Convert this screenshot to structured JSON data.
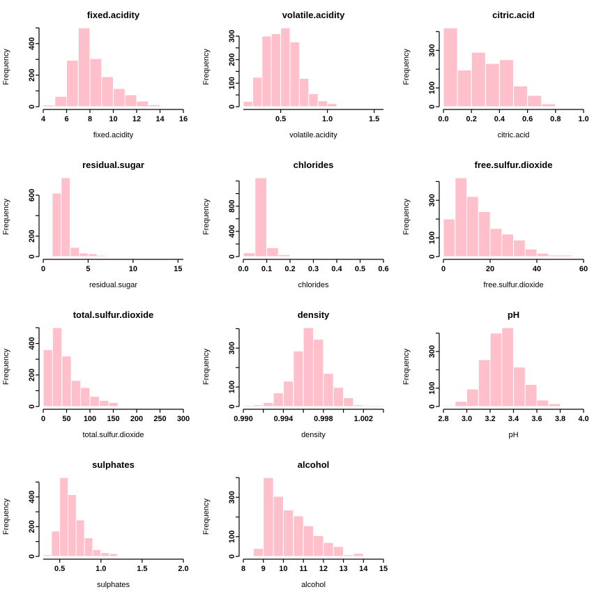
{
  "style": {
    "bar_fill": "#FFC0CB",
    "bar_border": "#FFFFFF",
    "axis_color": "#000000",
    "text_color": "#000000",
    "background": "#FFFFFF"
  },
  "chart_data": [
    {
      "type": "bar",
      "subtype": "histogram",
      "title": "fixed.acidity",
      "xlabel": "fixed.acidity",
      "ylabel": "Frequency",
      "xlim": [
        4,
        16
      ],
      "bin_start": 4,
      "bin_width": 1,
      "counts": [
        10,
        65,
        295,
        500,
        305,
        190,
        115,
        75,
        35,
        12,
        0,
        0
      ],
      "xticks": [
        4,
        6,
        8,
        10,
        12,
        14,
        16
      ],
      "xtick_labels": [
        "4",
        "6",
        "8",
        "10",
        "12",
        "14",
        "16"
      ],
      "yticks": [
        0,
        100,
        200,
        300,
        400,
        500
      ],
      "ytick_labels": [
        "0",
        "",
        "200",
        "",
        "400",
        ""
      ]
    },
    {
      "type": "bar",
      "subtype": "histogram",
      "title": "volatile.acidity",
      "xlabel": "volatile.acidity",
      "ylabel": "Frequency",
      "xlim": [
        0.1,
        1.6
      ],
      "bin_start": 0.1,
      "bin_width": 0.1,
      "counts": [
        22,
        125,
        300,
        310,
        335,
        275,
        120,
        55,
        25,
        13,
        0,
        0,
        0,
        0,
        0
      ],
      "xticks": [
        0.5,
        1.0,
        1.5
      ],
      "xtick_labels": [
        "0.5",
        "1.0",
        "1.5"
      ],
      "yticks": [
        0,
        50,
        100,
        150,
        200,
        250,
        300
      ],
      "ytick_labels": [
        "0",
        "",
        "100",
        "",
        "200",
        "",
        "300"
      ]
    },
    {
      "type": "bar",
      "subtype": "histogram",
      "title": "citric.acid",
      "xlabel": "citric.acid",
      "ylabel": "Frequency",
      "xlim": [
        0,
        1
      ],
      "bin_start": 0,
      "bin_width": 0.1,
      "counts": [
        420,
        195,
        290,
        230,
        250,
        110,
        60,
        15,
        0,
        2
      ],
      "xticks": [
        0,
        0.2,
        0.4,
        0.6,
        0.8,
        1.0
      ],
      "xtick_labels": [
        "0.0",
        "0.2",
        "0.4",
        "0.6",
        "0.8",
        "1.0"
      ],
      "yticks": [
        0,
        100,
        200,
        300,
        400
      ],
      "ytick_labels": [
        "0",
        "100",
        "",
        "300",
        ""
      ]
    },
    {
      "type": "bar",
      "subtype": "histogram",
      "title": "residual.sugar",
      "xlabel": "residual.sugar",
      "ylabel": "Frequency",
      "xlim": [
        0,
        15.6
      ],
      "bin_start": 1,
      "bin_width": 1,
      "counts": [
        620,
        770,
        90,
        35,
        28,
        12,
        5,
        2,
        1,
        1,
        1,
        0,
        0,
        0,
        1
      ],
      "xticks": [
        0,
        5,
        10,
        15
      ],
      "xtick_labels": [
        "0",
        "5",
        "10",
        "15"
      ],
      "yticks": [
        0,
        200,
        400,
        600
      ],
      "ytick_labels": [
        "0",
        "200",
        "",
        "600"
      ]
    },
    {
      "type": "bar",
      "subtype": "histogram",
      "title": "chlorides",
      "xlabel": "chlorides",
      "ylabel": "Frequency",
      "xlim": [
        0,
        0.6
      ],
      "bin_start": 0,
      "bin_width": 0.05,
      "counts": [
        60,
        1250,
        140,
        30,
        5,
        3,
        2,
        1,
        0,
        1,
        0,
        1
      ],
      "xticks": [
        0,
        0.1,
        0.2,
        0.3,
        0.4,
        0.5,
        0.6
      ],
      "xtick_labels": [
        "0.0",
        "0.1",
        "0.2",
        "0.3",
        "0.4",
        "0.5",
        "0.6"
      ],
      "yticks": [
        0,
        200,
        400,
        600,
        800,
        1000,
        1200
      ],
      "ytick_labels": [
        "0",
        "",
        "400",
        "",
        "800",
        "",
        ""
      ]
    },
    {
      "type": "bar",
      "subtype": "histogram",
      "title": "free.sulfur.dioxide",
      "xlabel": "free.sulfur.dioxide",
      "ylabel": "Frequency",
      "xlim": [
        0,
        60
      ],
      "bin_start": 0,
      "bin_width": 5,
      "counts": [
        200,
        420,
        320,
        240,
        150,
        120,
        88,
        40,
        18,
        8,
        8,
        2
      ],
      "xticks": [
        0,
        20,
        40,
        60
      ],
      "xtick_labels": [
        "0",
        "20",
        "40",
        "60"
      ],
      "yticks": [
        0,
        100,
        200,
        300,
        400
      ],
      "ytick_labels": [
        "0",
        "100",
        "",
        "300",
        ""
      ]
    },
    {
      "type": "bar",
      "subtype": "histogram",
      "title": "total.sulfur.dioxide",
      "xlabel": "total.sulfur.dioxide",
      "ylabel": "Frequency",
      "xlim": [
        0,
        300
      ],
      "bin_start": 0,
      "bin_width": 20,
      "counts": [
        360,
        500,
        320,
        165,
        120,
        65,
        38,
        25,
        2,
        0,
        0,
        0,
        0,
        0,
        1
      ],
      "xticks": [
        0,
        50,
        100,
        150,
        200,
        250,
        300
      ],
      "xtick_labels": [
        "0",
        "50",
        "100",
        "150",
        "200",
        "250",
        "300"
      ],
      "yticks": [
        0,
        100,
        200,
        300,
        400,
        500
      ],
      "ytick_labels": [
        "0",
        "",
        "200",
        "",
        "400",
        ""
      ]
    },
    {
      "type": "bar",
      "subtype": "histogram",
      "title": "density",
      "xlabel": "density",
      "ylabel": "Frequency",
      "xlim": [
        0.99,
        1.004
      ],
      "bin_start": 0.99,
      "bin_width": 0.001,
      "counts": [
        5,
        8,
        20,
        70,
        130,
        285,
        405,
        345,
        170,
        98,
        45,
        8,
        5,
        5
      ],
      "xticks": [
        0.99,
        0.992,
        0.994,
        0.996,
        0.998,
        1.0,
        1.002,
        1.004
      ],
      "xtick_labels": [
        "0.990",
        "",
        "0.994",
        "",
        "0.998",
        "",
        "1.002",
        ""
      ],
      "yticks": [
        0,
        100,
        200,
        300,
        400
      ],
      "ytick_labels": [
        "0",
        "100",
        "",
        "300",
        ""
      ]
    },
    {
      "type": "bar",
      "subtype": "histogram",
      "title": "pH",
      "xlabel": "pH",
      "ylabel": "Frequency",
      "xlim": [
        2.8,
        4.0
      ],
      "bin_start": 2.8,
      "bin_width": 0.1,
      "counts": [
        5,
        28,
        95,
        255,
        400,
        430,
        215,
        120,
        35,
        15,
        2,
        1
      ],
      "xticks": [
        2.8,
        3.0,
        3.2,
        3.4,
        3.6,
        3.8,
        4.0
      ],
      "xtick_labels": [
        "2.8",
        "3.0",
        "3.2",
        "3.4",
        "3.6",
        "3.8",
        "4.0"
      ],
      "yticks": [
        0,
        100,
        200,
        300,
        400
      ],
      "ytick_labels": [
        "0",
        "100",
        "",
        "300",
        ""
      ]
    },
    {
      "type": "bar",
      "subtype": "histogram",
      "title": "sulphates",
      "xlabel": "sulphates",
      "ylabel": "Frequency",
      "xlim": [
        0.3,
        2.0
      ],
      "bin_start": 0.3,
      "bin_width": 0.1,
      "counts": [
        10,
        170,
        530,
        415,
        245,
        125,
        45,
        25,
        18,
        5,
        3,
        2,
        1,
        0,
        0,
        1,
        1
      ],
      "xticks": [
        0.5,
        1.0,
        1.5,
        2.0
      ],
      "xtick_labels": [
        "0.5",
        "1.0",
        "1.5",
        "2.0"
      ],
      "yticks": [
        0,
        100,
        200,
        300,
        400,
        500
      ],
      "ytick_labels": [
        "0",
        "",
        "200",
        "",
        "400",
        ""
      ]
    },
    {
      "type": "bar",
      "subtype": "histogram",
      "title": "alcohol",
      "xlabel": "alcohol",
      "ylabel": "Frequency",
      "xlim": [
        8,
        15
      ],
      "bin_start": 8.5,
      "bin_width": 0.5,
      "counts": [
        40,
        400,
        305,
        235,
        205,
        155,
        105,
        70,
        50,
        8,
        15,
        2,
        1
      ],
      "xticks": [
        8,
        9,
        10,
        11,
        12,
        13,
        14,
        15
      ],
      "xtick_labels": [
        "8",
        "9",
        "10",
        "11",
        "12",
        "13",
        "14",
        "15"
      ],
      "yticks": [
        0,
        100,
        200,
        300,
        400
      ],
      "ytick_labels": [
        "0",
        "100",
        "",
        "300",
        ""
      ]
    }
  ]
}
